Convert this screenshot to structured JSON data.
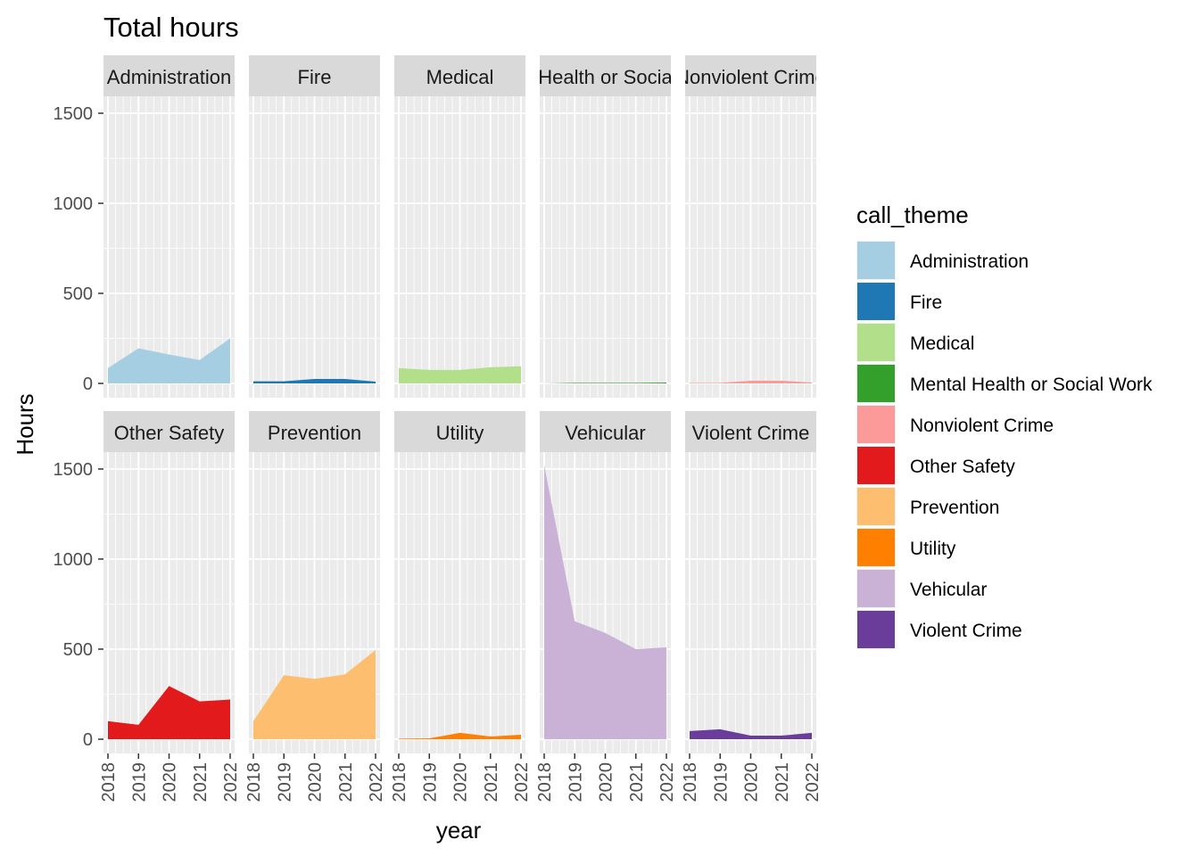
{
  "chart_data": {
    "type": "area",
    "title": "Total hours",
    "xlabel": "year",
    "ylabel": "Hours",
    "x": [
      2018,
      2019,
      2020,
      2021,
      2022
    ],
    "xticks": [
      "2018",
      "2019",
      "2020",
      "2021",
      "2022"
    ],
    "yticks": [
      "0",
      "500",
      "1000",
      "1500"
    ],
    "ylim": [
      0,
      1500
    ],
    "facet_layout": {
      "rows": 2,
      "cols": 5
    },
    "grid": true,
    "legend": {
      "title": "call_theme",
      "placement": "right",
      "entries": [
        {
          "label": "Administration",
          "color": "#A6CEE3"
        },
        {
          "label": "Fire",
          "color": "#1F78B4"
        },
        {
          "label": "Medical",
          "color": "#B2DF8A"
        },
        {
          "label": "Mental Health or Social Work",
          "color": "#33A02C"
        },
        {
          "label": "Nonviolent Crime",
          "color": "#FB9A99"
        },
        {
          "label": "Other Safety",
          "color": "#E31A1C"
        },
        {
          "label": "Prevention",
          "color": "#FDBF6F"
        },
        {
          "label": "Utility",
          "color": "#FF7F00"
        },
        {
          "label": "Vehicular",
          "color": "#CAB2D6"
        },
        {
          "label": "Violent Crime",
          "color": "#6A3D9A"
        }
      ]
    },
    "series": [
      {
        "name": "Administration",
        "strip": "Administration",
        "color": "#A6CEE3",
        "values": [
          85,
          195,
          160,
          130,
          250
        ]
      },
      {
        "name": "Fire",
        "strip": "Fire",
        "color": "#1F78B4",
        "values": [
          12,
          12,
          25,
          25,
          10
        ]
      },
      {
        "name": "Medical",
        "strip": "Medical",
        "color": "#B2DF8A",
        "values": [
          85,
          75,
          75,
          90,
          95
        ]
      },
      {
        "name": "Mental Health or Social Work",
        "strip": "Health or Socia",
        "color": "#33A02C",
        "values": [
          0,
          3,
          3,
          3,
          5
        ]
      },
      {
        "name": "Nonviolent Crime",
        "strip": "Nonviolent Crime",
        "color": "#FB9A99",
        "values": [
          3,
          3,
          15,
          15,
          5
        ]
      },
      {
        "name": "Other Safety",
        "strip": "Other Safety",
        "color": "#E31A1C",
        "values": [
          100,
          80,
          295,
          210,
          220
        ]
      },
      {
        "name": "Prevention",
        "strip": "Prevention",
        "color": "#FDBF6F",
        "values": [
          100,
          355,
          335,
          360,
          495
        ]
      },
      {
        "name": "Utility",
        "strip": "Utility",
        "color": "#FF7F00",
        "values": [
          3,
          5,
          35,
          15,
          25
        ]
      },
      {
        "name": "Vehicular",
        "strip": "Vehicular",
        "color": "#CAB2D6",
        "values": [
          1520,
          655,
          590,
          500,
          510
        ]
      },
      {
        "name": "Violent Crime",
        "strip": "Violent Crime",
        "color": "#6A3D9A",
        "values": [
          45,
          55,
          20,
          20,
          35
        ]
      }
    ]
  }
}
